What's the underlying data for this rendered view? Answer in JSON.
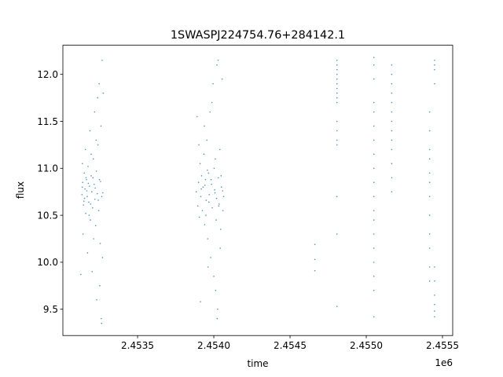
{
  "chart_data": {
    "type": "scatter",
    "title": "1SWASPJ224754.76+284142.1",
    "xlabel": "time",
    "ylabel": "flux",
    "x_offset_label": "1e6",
    "xlim": [
      2453010,
      2455567
    ],
    "ylim": [
      9.22,
      12.31
    ],
    "xticks": [
      2453500,
      2454000,
      2454500,
      2455000,
      2455500
    ],
    "xtick_labels": [
      "2.4535",
      "2.4540",
      "2.4545",
      "2.4550",
      "2.4555"
    ],
    "yticks": [
      9.5,
      10.0,
      10.5,
      11.0,
      11.5,
      12.0
    ],
    "ytick_labels": [
      "9.5",
      "10.0",
      "10.5",
      "11.0",
      "11.5",
      "12.0"
    ],
    "grid": false,
    "marker_color": "#1f77b4",
    "points": [
      [
        2453135,
        10.72
      ],
      [
        2453140,
        10.85
      ],
      [
        2453145,
        10.61
      ],
      [
        2453150,
        10.95
      ],
      [
        2453155,
        10.78
      ],
      [
        2453160,
        10.52
      ],
      [
        2453165,
        10.88
      ],
      [
        2453170,
        10.7
      ],
      [
        2453175,
        11.02
      ],
      [
        2453180,
        10.64
      ],
      [
        2453185,
        10.81
      ],
      [
        2453190,
        10.45
      ],
      [
        2453195,
        10.92
      ],
      [
        2453200,
        10.75
      ],
      [
        2453205,
        10.58
      ],
      [
        2453210,
        11.1
      ],
      [
        2453215,
        10.83
      ],
      [
        2453220,
        10.67
      ],
      [
        2453225,
        10.39
      ],
      [
        2453230,
        10.97
      ],
      [
        2453235,
        10.73
      ],
      [
        2453240,
        11.25
      ],
      [
        2453245,
        10.55
      ],
      [
        2453250,
        10.88
      ],
      [
        2453255,
        10.2
      ],
      [
        2453260,
        11.45
      ],
      [
        2453265,
        10.7
      ],
      [
        2453270,
        10.05
      ],
      [
        2453275,
        11.8
      ],
      [
        2453142,
        10.3
      ],
      [
        2453158,
        11.2
      ],
      [
        2453172,
        10.1
      ],
      [
        2453188,
        11.4
      ],
      [
        2453202,
        9.9
      ],
      [
        2453218,
        11.6
      ],
      [
        2453232,
        9.6
      ],
      [
        2453248,
        11.9
      ],
      [
        2453262,
        9.4
      ],
      [
        2453268,
        12.15
      ],
      [
        2453252,
        9.75
      ],
      [
        2453238,
        11.75
      ],
      [
        2453212,
        10.25
      ],
      [
        2453196,
        11.15
      ],
      [
        2453182,
        10.5
      ],
      [
        2453162,
        10.9
      ],
      [
        2453148,
        10.65
      ],
      [
        2453138,
        11.05
      ],
      [
        2453128,
        9.87
      ],
      [
        2453264,
        9.35
      ],
      [
        2453228,
        11.3
      ],
      [
        2453137,
        10.8
      ],
      [
        2453152,
        10.68
      ],
      [
        2453167,
        10.76
      ],
      [
        2453177,
        10.84
      ],
      [
        2453192,
        10.62
      ],
      [
        2453207,
        10.9
      ],
      [
        2453222,
        10.79
      ],
      [
        2453242,
        10.66
      ],
      [
        2453257,
        10.86
      ],
      [
        2453272,
        10.74
      ],
      [
        2453885,
        10.75
      ],
      [
        2453890,
        11.55
      ],
      [
        2453895,
        10.6
      ],
      [
        2453900,
        10.85
      ],
      [
        2453905,
        10.48
      ],
      [
        2453910,
        11.05
      ],
      [
        2453915,
        10.7
      ],
      [
        2453920,
        10.92
      ],
      [
        2453925,
        10.55
      ],
      [
        2453930,
        10.8
      ],
      [
        2453935,
        11.15
      ],
      [
        2453940,
        10.4
      ],
      [
        2453945,
        10.88
      ],
      [
        2453950,
        10.66
      ],
      [
        2453955,
        11.3
      ],
      [
        2453960,
        10.25
      ],
      [
        2453965,
        10.95
      ],
      [
        2453970,
        10.72
      ],
      [
        2453975,
        11.6
      ],
      [
        2453980,
        10.05
      ],
      [
        2453985,
        10.83
      ],
      [
        2453990,
        10.58
      ],
      [
        2453995,
        11.9
      ],
      [
        2454000,
        9.85
      ],
      [
        2454005,
        10.77
      ],
      [
        2454010,
        11.1
      ],
      [
        2454015,
        10.45
      ],
      [
        2454020,
        12.1
      ],
      [
        2454025,
        9.5
      ],
      [
        2454030,
        10.9
      ],
      [
        2454035,
        10.62
      ],
      [
        2454040,
        11.2
      ],
      [
        2454045,
        10.35
      ],
      [
        2454050,
        10.8
      ],
      [
        2454055,
        11.95
      ],
      [
        2454060,
        10.55
      ],
      [
        2454065,
        10.7
      ],
      [
        2453912,
        9.58
      ],
      [
        2453938,
        11.45
      ],
      [
        2453962,
        9.95
      ],
      [
        2453988,
        11.7
      ],
      [
        2454012,
        9.7
      ],
      [
        2454028,
        12.15
      ],
      [
        2454022,
        9.4
      ],
      [
        2454042,
        10.15
      ],
      [
        2453958,
        10.98
      ],
      [
        2453948,
        10.5
      ],
      [
        2454002,
        11.0
      ],
      [
        2454018,
        10.68
      ],
      [
        2453902,
        11.25
      ],
      [
        2453918,
        10.78
      ],
      [
        2453942,
        10.82
      ],
      [
        2453968,
        10.64
      ],
      [
        2453982,
        10.88
      ],
      [
        2454008,
        10.74
      ],
      [
        2454032,
        10.6
      ],
      [
        2454048,
        10.92
      ],
      [
        2454058,
        10.76
      ],
      [
        2454663,
        10.19
      ],
      [
        2454663,
        10.03
      ],
      [
        2454663,
        9.91
      ],
      [
        2454808,
        12.15
      ],
      [
        2454808,
        12.1
      ],
      [
        2454808,
        12.05
      ],
      [
        2454808,
        12.0
      ],
      [
        2454808,
        11.95
      ],
      [
        2454808,
        11.9
      ],
      [
        2454808,
        11.85
      ],
      [
        2454808,
        11.8
      ],
      [
        2454808,
        11.75
      ],
      [
        2454808,
        11.7
      ],
      [
        2454808,
        11.5
      ],
      [
        2454808,
        11.4
      ],
      [
        2454808,
        11.3
      ],
      [
        2454808,
        11.25
      ],
      [
        2454808,
        10.7
      ],
      [
        2454808,
        10.3
      ],
      [
        2454808,
        9.53
      ],
      [
        2455050,
        12.18
      ],
      [
        2455050,
        12.1
      ],
      [
        2455050,
        11.95
      ],
      [
        2455050,
        11.7
      ],
      [
        2455050,
        11.6
      ],
      [
        2455050,
        11.45
      ],
      [
        2455050,
        11.3
      ],
      [
        2455050,
        11.15
      ],
      [
        2455050,
        11.0
      ],
      [
        2455050,
        10.85
      ],
      [
        2455050,
        10.7
      ],
      [
        2455050,
        10.55
      ],
      [
        2455050,
        10.45
      ],
      [
        2455050,
        10.3
      ],
      [
        2455050,
        10.15
      ],
      [
        2455050,
        10.0
      ],
      [
        2455050,
        9.85
      ],
      [
        2455050,
        9.7
      ],
      [
        2455050,
        9.42
      ],
      [
        2455167,
        12.1
      ],
      [
        2455167,
        12.0
      ],
      [
        2455167,
        11.9
      ],
      [
        2455167,
        11.8
      ],
      [
        2455167,
        11.7
      ],
      [
        2455167,
        11.6
      ],
      [
        2455167,
        11.5
      ],
      [
        2455167,
        11.4
      ],
      [
        2455167,
        11.3
      ],
      [
        2455167,
        11.2
      ],
      [
        2455167,
        11.05
      ],
      [
        2455167,
        10.9
      ],
      [
        2455167,
        10.75
      ],
      [
        2455448,
        12.15
      ],
      [
        2455448,
        12.1
      ],
      [
        2455448,
        12.05
      ],
      [
        2455448,
        11.9
      ],
      [
        2455416,
        11.6
      ],
      [
        2455416,
        11.4
      ],
      [
        2455416,
        11.2
      ],
      [
        2455416,
        11.1
      ],
      [
        2455416,
        10.95
      ],
      [
        2455416,
        10.85
      ],
      [
        2455416,
        10.7
      ],
      [
        2455416,
        10.5
      ],
      [
        2455416,
        10.3
      ],
      [
        2455416,
        10.15
      ],
      [
        2455416,
        9.95
      ],
      [
        2455416,
        9.8
      ],
      [
        2455448,
        9.95
      ],
      [
        2455448,
        9.8
      ],
      [
        2455448,
        9.65
      ],
      [
        2455448,
        9.55
      ],
      [
        2455448,
        9.48
      ],
      [
        2455448,
        9.42
      ]
    ]
  }
}
